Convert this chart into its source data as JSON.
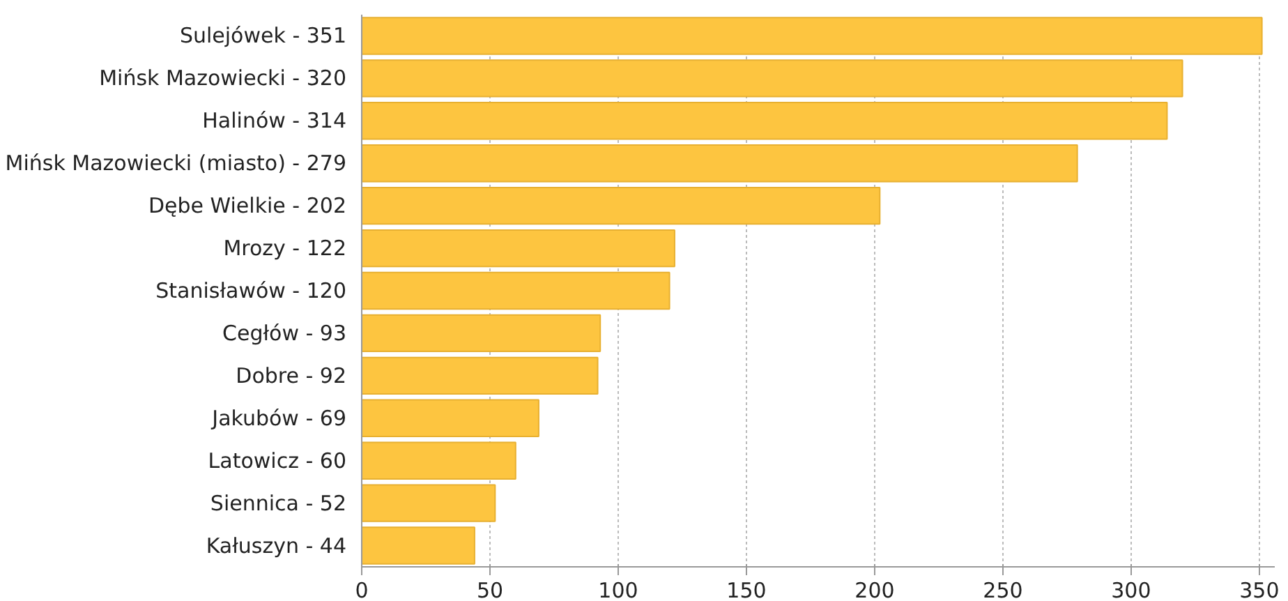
{
  "chart_data": {
    "type": "bar",
    "orientation": "horizontal",
    "categories": [
      "Sulejówek - 351",
      "Mińsk Mazowiecki - 320",
      "Halinów - 314",
      "Mińsk Mazowiecki (miasto) - 279",
      "Dębe Wielkie - 202",
      "Mrozy - 122",
      "Stanisławów - 120",
      "Cegłów - 93",
      "Dobre - 92",
      "Jakubów - 69",
      "Latowicz - 60",
      "Siennica - 52",
      "Kałuszyn - 44"
    ],
    "values": [
      351,
      320,
      314,
      279,
      202,
      122,
      120,
      93,
      92,
      69,
      60,
      52,
      44
    ],
    "color": "#fdc540",
    "xlim": [
      0,
      356
    ],
    "xticks": [
      0,
      50,
      100,
      150,
      200,
      250,
      300,
      350
    ],
    "grid": "x"
  }
}
